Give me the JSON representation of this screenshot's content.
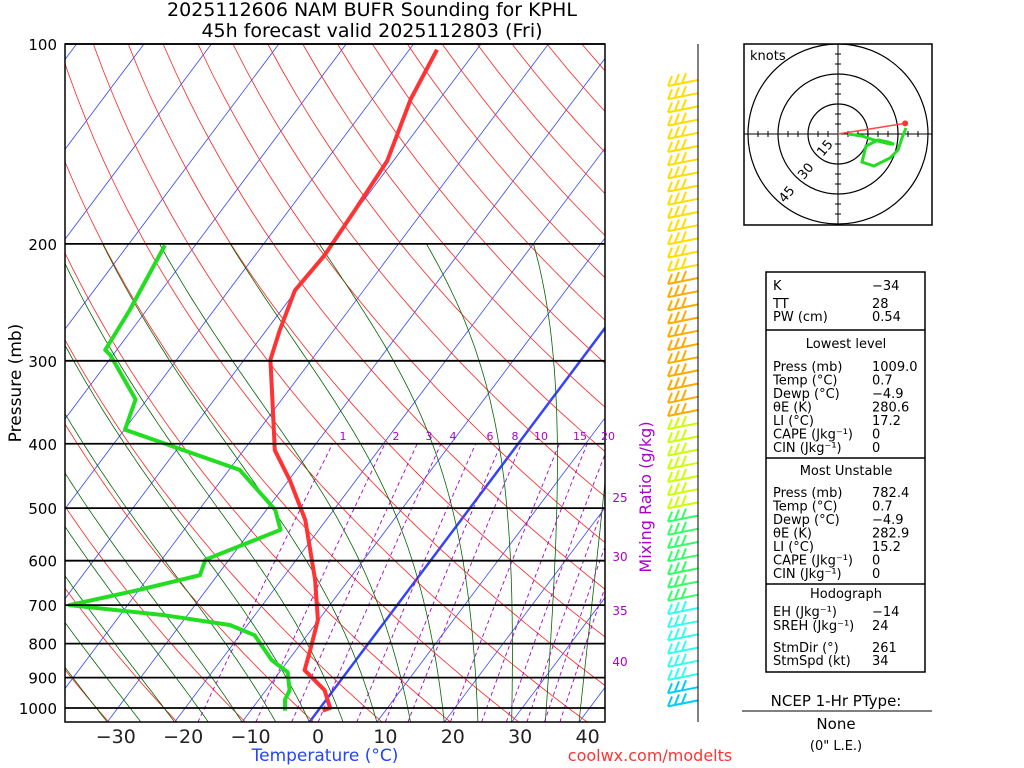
{
  "chart_data": {
    "type": "line",
    "title": "2025112606 NAM BUFR Sounding for KPHL",
    "subtitle": "45h forecast valid 2025112803 (Fri)",
    "xlabel": "Temperature (°C)",
    "ylabel": "Pressure (mb)",
    "xlim": [
      -38,
      42
    ],
    "ylim": [
      1050,
      100
    ],
    "x_ticks": [
      "−30",
      "−20",
      "−10",
      "0",
      "10",
      "20",
      "30",
      "40"
    ],
    "x_tick_values": [
      -30,
      -20,
      -10,
      0,
      10,
      20,
      30,
      40
    ],
    "y_ticks": [
      100,
      200,
      300,
      400,
      500,
      600,
      700,
      800,
      900,
      1000
    ],
    "mixing_ratio_label": "Mixing Ratio (g/kg)",
    "mixing_ratios_top": [
      "1",
      "2",
      "3",
      "4",
      "6",
      "8",
      "10",
      "15",
      "20"
    ],
    "mixing_ratios_side": [
      "25",
      "30",
      "35",
      "40"
    ],
    "series": [
      {
        "name": "Temperature",
        "color": "#ff3333",
        "p": [
          1009,
          1000,
          940,
          877,
          818,
          737,
          641,
          521,
          454,
          409,
          343,
          299,
          270,
          235,
          208,
          178,
          150,
          121,
          102
        ],
        "T": [
          0.7,
          1.5,
          -1.3,
          -6.5,
          -7.9,
          -10.1,
          -15,
          -23.1,
          -29.8,
          -35.4,
          -41.4,
          -46.1,
          -48,
          -50.2,
          -49.7,
          -50.2,
          -50.9,
          -54.3,
          -55.9
        ]
      },
      {
        "name": "Dewpoint",
        "color": "#22dd22",
        "p": [
          1009,
          972,
          940,
          883,
          847,
          777,
          750,
          725,
          700,
          663,
          631,
          598,
          539,
          503,
          438,
          381,
          343,
          294,
          289,
          252,
          201
        ],
        "T": [
          -4.9,
          -6.1,
          -6.5,
          -8.8,
          -12.5,
          -17.8,
          -22.6,
          -33.3,
          -48.6,
          -39.8,
          -32.6,
          -33.5,
          -25.7,
          -28.7,
          -38.4,
          -59.9,
          -61.7,
          -70.4,
          -71.7,
          -72.5,
          -74.5
        ]
      }
    ],
    "freezing_isotherm_c": 0
  },
  "hodograph": {
    "units_label": "knots",
    "rings": [
      "15",
      "30",
      "45"
    ],
    "trace_u": [
      5,
      12,
      18,
      22,
      26,
      28,
      25,
      20,
      14,
      12,
      18,
      26,
      30,
      32,
      34
    ],
    "trace_v": [
      0,
      -1,
      -3,
      -4,
      -5,
      -5,
      -4,
      -3,
      -6,
      -14,
      -16,
      -12,
      -8,
      -2,
      3
    ],
    "storm_dir_deg": 261,
    "storm_speed_kt": 34
  },
  "stats": {
    "indices": [
      {
        "label": "K",
        "value": "−34"
      },
      {
        "label": "TT",
        "value": "28"
      },
      {
        "label": "PW (cm)",
        "value": "0.54"
      }
    ],
    "lowest_title": "Lowest level",
    "lowest": [
      {
        "label": "Press (mb)",
        "value": "1009.0"
      },
      {
        "label": "Temp (°C)",
        "value": "0.7"
      },
      {
        "label": "Dewp (°C)",
        "value": "−4.9"
      },
      {
        "label": "θE (K)",
        "value": "280.6"
      },
      {
        "label": "LI (°C)",
        "value": "17.2"
      },
      {
        "label": "CAPE (Jkg⁻¹)",
        "value": "0"
      },
      {
        "label": "CIN (Jkg⁻¹)",
        "value": "0"
      }
    ],
    "mu_title": "Most Unstable",
    "mu": [
      {
        "label": "Press (mb)",
        "value": "782.4"
      },
      {
        "label": "Temp (°C)",
        "value": "0.7"
      },
      {
        "label": "Dewp (°C)",
        "value": "−4.9"
      },
      {
        "label": "θE (K)",
        "value": "282.9"
      },
      {
        "label": "LI (°C)",
        "value": "15.2"
      },
      {
        "label": "CAPE (Jkg⁻¹)",
        "value": "0"
      },
      {
        "label": "CIN (Jkg⁻¹)",
        "value": "0"
      }
    ],
    "hodo_title": "Hodograph",
    "hodo": [
      {
        "label": "EH (Jkg⁻¹)",
        "value": "−14"
      },
      {
        "label": "SREH (Jkg⁻¹)",
        "value": "24"
      },
      {
        "label": "StmDir (°)",
        "value": "261"
      },
      {
        "label": "StmSpd (kt)",
        "value": "34"
      }
    ]
  },
  "ptype": {
    "title": "NCEP 1-Hr PType:",
    "value": "None",
    "note": "(0\" L.E.)"
  },
  "footer": {
    "credit": "coolwx.com/modelts"
  },
  "colors": {
    "isotherm": "#3344ff",
    "adiabat": "#ff2222",
    "moist": "#006600",
    "mixing": "#aa00cc",
    "axis_label": "#2244ff"
  }
}
